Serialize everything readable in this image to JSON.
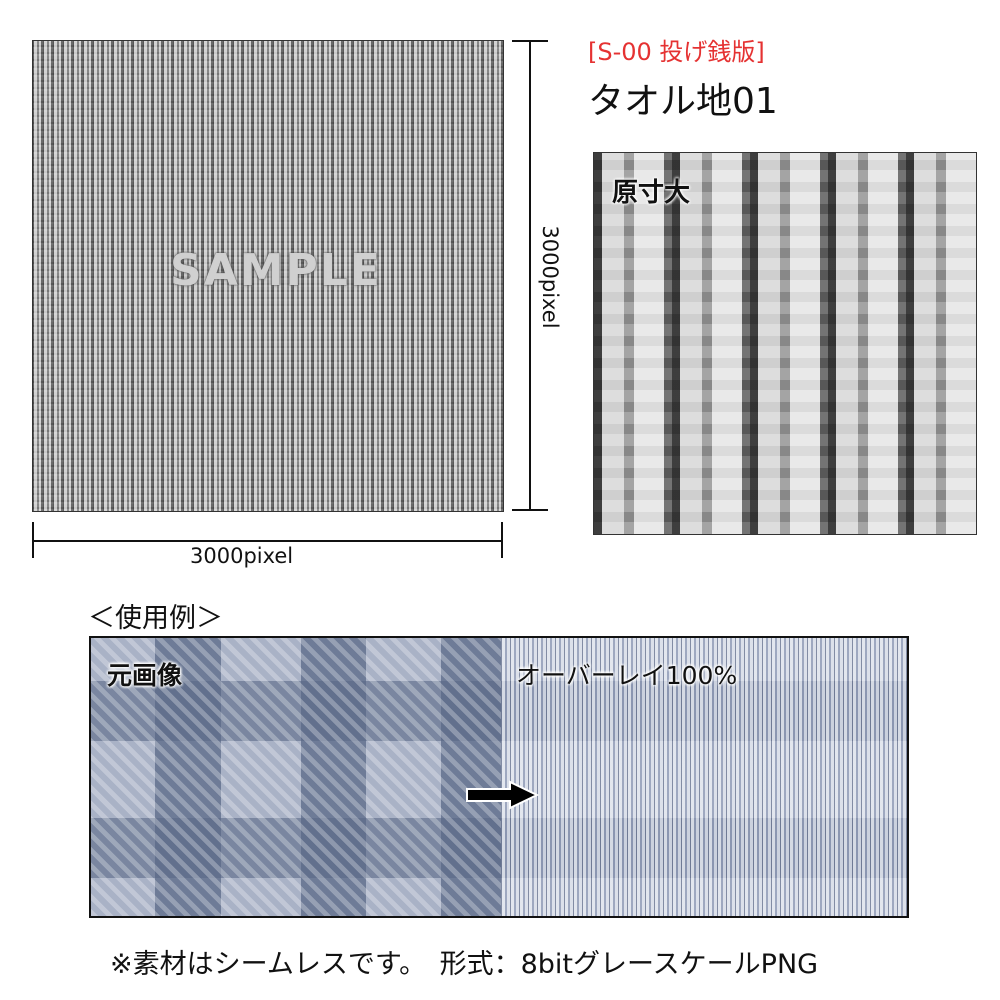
{
  "header": {
    "series_label": "[S-00 投げ銭版]",
    "title": "タオル地01",
    "series_color": "#e53232"
  },
  "preview": {
    "watermark": "SAMPLE",
    "height_label": "3000pixel",
    "width_label": "3000pixel"
  },
  "detail": {
    "label": "原寸大"
  },
  "example": {
    "heading": "＜使用例＞",
    "original_label": "元画像",
    "overlay_label": "オーバーレイ100%"
  },
  "footer": {
    "note": "※素材はシームレスです。　形式：8bitグレースケールPNG"
  }
}
